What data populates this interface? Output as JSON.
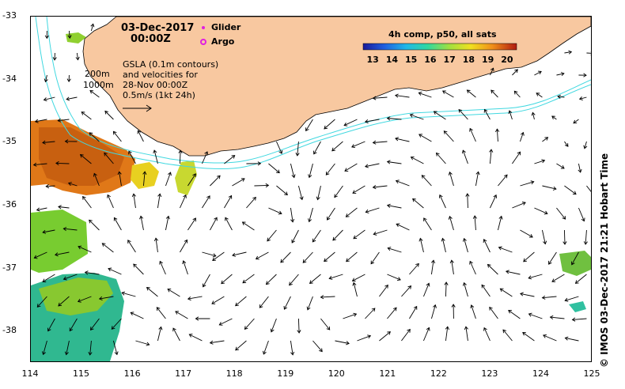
{
  "map": {
    "date": "03-Dec-2017",
    "time": "00:00Z",
    "legend": {
      "glider": "Glider",
      "argo": "Argo",
      "glider_color": "#e020e0",
      "argo_color": "#e020e0"
    },
    "colorbar": {
      "title": "4h comp, p50, all sats",
      "labels": [
        "13",
        "14",
        "15",
        "16",
        "17",
        "18",
        "19",
        "20"
      ],
      "min": 12.5,
      "max": 20.5
    },
    "notes": {
      "line1": "GSLA (0.1m contours)",
      "line2": "and velocities for",
      "line3": "28-Nov 00:00Z",
      "line4": "0.5m/s (1kt 24h)"
    },
    "isobaths": {
      "a": "200m",
      "b": "1000m"
    },
    "credit": "©  IMOS 03-Dec-2017 21:21 Hobart Time",
    "x_ticks": [
      "114",
      "115",
      "116",
      "117",
      "118",
      "119",
      "120",
      "121",
      "122",
      "123",
      "124",
      "125"
    ],
    "y_ticks": [
      "-33",
      "-34",
      "-35",
      "-36",
      "-37",
      "-38"
    ],
    "lon_range": [
      114,
      125
    ],
    "lat_range": [
      -38.5,
      -33
    ],
    "colors": {
      "land": "#f8c8a0",
      "isobath": "#40d8e0",
      "arrow": "#000000",
      "background": "#ffffff"
    }
  }
}
